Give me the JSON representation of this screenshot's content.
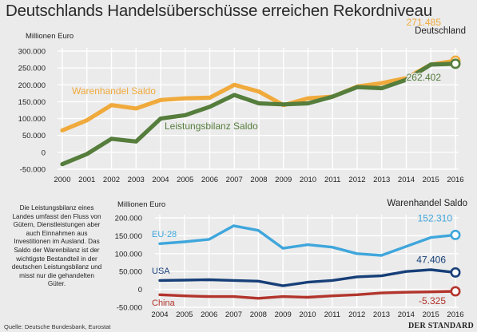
{
  "title": "Deutschlands Handelsüberschüsse erreichen Rekordniveau",
  "note": "Die Leistungsbilanz eines Landes umfasst den Fluss von Gütern, Dienstleistungen aber auch Einnahmen aus Investitionen im Ausland. Das Saldo der Warenbilanz ist der wichtigste Bestandteil in der deutschen Leistungsbilanz und misst nur die gehandelten Güter.",
  "source": "Quelle: Deutsche Bundesbank, Eurostat",
  "brand": "DER STANDARD",
  "colors": {
    "orange": "#f0aa3c",
    "green": "#557d3c",
    "blue": "#3fa6dc",
    "navy": "#173f78",
    "red": "#b2352c",
    "grid": "#ffffff",
    "bg": "#ebebeb"
  },
  "chart_data": [
    {
      "type": "line",
      "unit": "Millionen Euro",
      "panel_title": "Deutschland",
      "x": [
        "2000",
        "2001",
        "2002",
        "2003",
        "2004",
        "2005",
        "2006",
        "2007",
        "2008",
        "2009",
        "2010",
        "2011",
        "2012",
        "2013",
        "2014",
        "2015",
        "2016"
      ],
      "ylim": [
        -50000,
        300000
      ],
      "yticks": [
        "300.000",
        "250.000",
        "200.000",
        "150.000",
        "100.000",
        "50.000",
        "0",
        "-50.000"
      ],
      "grid": true,
      "series": [
        {
          "name": "Warenhandel Saldo",
          "color": "#f0aa3c",
          "values": [
            65000,
            95000,
            140000,
            130000,
            155000,
            160000,
            162000,
            200000,
            180000,
            140000,
            160000,
            165000,
            195000,
            205000,
            220000,
            260000,
            271485
          ],
          "end_label": "271.485"
        },
        {
          "name": "Leistungsbilanz Saldo",
          "color": "#557d3c",
          "values": [
            -35000,
            -5000,
            40000,
            32000,
            100000,
            110000,
            135000,
            170000,
            145000,
            142000,
            145000,
            165000,
            193000,
            190000,
            215000,
            260000,
            262402
          ],
          "end_label": "262.402"
        }
      ]
    },
    {
      "type": "line",
      "unit": "Millionen Euro",
      "panel_title": "Warenhandel Saldo",
      "x": [
        "2004",
        "2005",
        "2006",
        "2007",
        "2008",
        "2009",
        "2010",
        "2011",
        "2012",
        "2013",
        "2014",
        "2015",
        "2016"
      ],
      "ylim": [
        -50000,
        200000
      ],
      "yticks": [
        "200.000",
        "150.000",
        "100.000",
        "50.000",
        "0",
        "-50.000"
      ],
      "grid": true,
      "series": [
        {
          "name": "EU-28",
          "color": "#3fa6dc",
          "values": [
            128000,
            133000,
            140000,
            178000,
            165000,
            115000,
            125000,
            118000,
            100000,
            95000,
            120000,
            145000,
            152310
          ],
          "end_label": "152.310"
        },
        {
          "name": "USA",
          "color": "#173f78",
          "values": [
            25000,
            26000,
            27000,
            25000,
            23000,
            10000,
            20000,
            25000,
            35000,
            38000,
            50000,
            55000,
            47406
          ],
          "end_label": "47.406"
        },
        {
          "name": "China",
          "color": "#b2352c",
          "values": [
            -15000,
            -18000,
            -20000,
            -20000,
            -25000,
            -20000,
            -22000,
            -18000,
            -15000,
            -10000,
            -8000,
            -7000,
            -5325
          ],
          "end_label": "-5.325"
        }
      ]
    }
  ]
}
